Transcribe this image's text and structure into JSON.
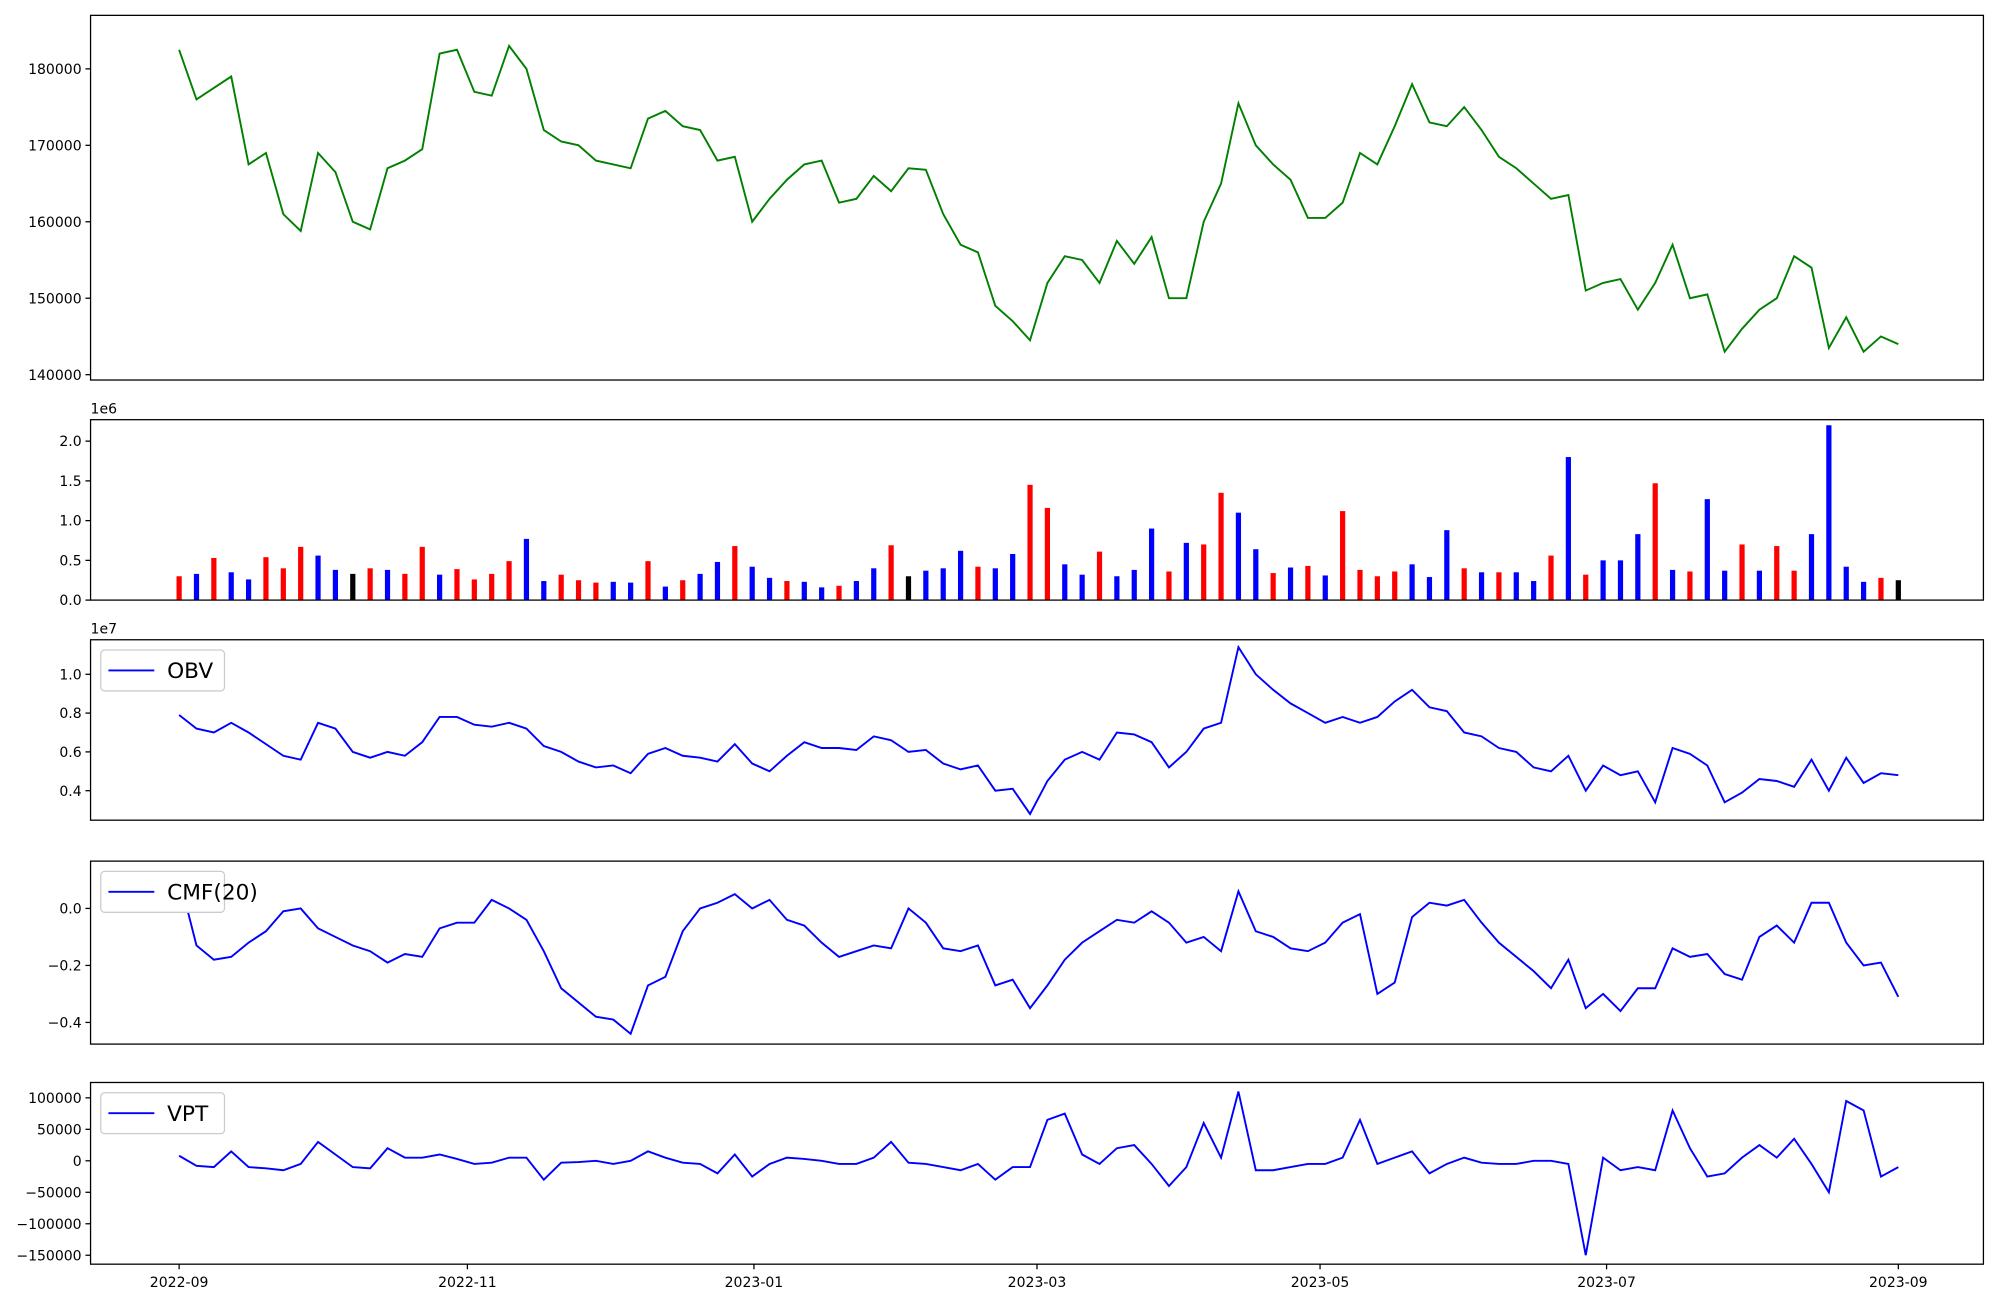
{
  "chart_data": [
    {
      "type": "line",
      "series": [
        {
          "color": "#008000",
          "values": [
            182500,
            176000,
            177500,
            179000,
            167500,
            169000,
            161000,
            158800,
            169000,
            166500,
            160000,
            159000,
            167000,
            168000,
            169500,
            182000,
            182500,
            177000,
            176500,
            183000,
            180000,
            172000,
            170500,
            170000,
            168000,
            167500,
            167000,
            173500,
            174500,
            172500,
            172000,
            168000,
            168500,
            160000,
            163000,
            165500,
            167500,
            168000,
            162500,
            163000,
            166000,
            164000,
            167000,
            166800,
            161000,
            157000,
            156000,
            149000,
            147000,
            144500,
            152000,
            155500,
            155000,
            152000,
            157500,
            154500,
            158000,
            150000,
            150000,
            160000,
            165000,
            175500,
            170000,
            167500,
            165500,
            160500,
            160500,
            162500,
            169000,
            167500,
            172500,
            178000,
            173000,
            172500,
            175000,
            172000,
            168500,
            167000,
            165000,
            163000,
            163500,
            151000,
            152000,
            152500,
            148500,
            152000,
            157000,
            150000,
            150500,
            143000,
            146000,
            148500,
            150000,
            155500,
            154000,
            143500,
            147500,
            143000,
            145000,
            144000
          ]
        }
      ],
      "xlim": [
        -5.1,
        103.9
      ],
      "ylim": [
        139300,
        187000
      ],
      "yticks": [
        140000,
        150000,
        160000,
        170000,
        180000
      ]
    },
    {
      "type": "bar",
      "offset_label": "1e6",
      "values": [
        300000,
        330000,
        530000,
        350000,
        260000,
        540000,
        400000,
        670000,
        560000,
        380000,
        330000,
        400000,
        380000,
        330000,
        670000,
        320000,
        390000,
        260000,
        330000,
        490000,
        770000,
        240000,
        320000,
        250000,
        220000,
        230000,
        220000,
        490000,
        170000,
        250000,
        330000,
        480000,
        680000,
        420000,
        280000,
        240000,
        230000,
        160000,
        180000,
        240000,
        400000,
        690000,
        300000,
        370000,
        400000,
        620000,
        420000,
        400000,
        580000,
        1450000,
        1160000,
        450000,
        320000,
        610000,
        300000,
        380000,
        900000,
        360000,
        720000,
        700000,
        1350000,
        1100000,
        640000,
        340000,
        410000,
        430000,
        310000,
        1120000,
        380000,
        300000,
        360000,
        450000,
        290000,
        880000,
        400000,
        350000,
        350000,
        350000,
        240000,
        560000,
        1800000,
        320000,
        500000,
        500000,
        830000,
        1470000,
        380000,
        360000,
        1270000,
        370000,
        700000,
        370000,
        680000,
        370000,
        830000,
        2200000,
        420000,
        230000,
        280000,
        250000
      ],
      "colors": [
        "red",
        "blue",
        "red",
        "blue",
        "blue",
        "red",
        "red",
        "red",
        "blue",
        "blue",
        "black",
        "red",
        "blue",
        "red",
        "red",
        "blue",
        "red",
        "red",
        "red",
        "red",
        "blue",
        "blue",
        "red",
        "red",
        "red",
        "blue",
        "blue",
        "red",
        "blue",
        "red",
        "blue",
        "blue",
        "red",
        "blue",
        "blue",
        "red",
        "blue",
        "blue",
        "red",
        "blue",
        "blue",
        "red",
        "black",
        "blue",
        "blue",
        "blue",
        "red",
        "blue",
        "blue",
        "red",
        "red",
        "blue",
        "blue",
        "red",
        "blue",
        "blue",
        "blue",
        "red",
        "blue",
        "red",
        "red",
        "blue",
        "blue",
        "red",
        "blue",
        "red",
        "blue",
        "red",
        "red",
        "red",
        "red",
        "blue",
        "blue",
        "blue",
        "red",
        "blue",
        "red",
        "blue",
        "blue",
        "red",
        "blue",
        "red",
        "blue",
        "blue",
        "blue",
        "red",
        "blue",
        "red",
        "blue",
        "blue",
        "red",
        "blue",
        "red",
        "red",
        "blue",
        "blue",
        "blue",
        "blue",
        "red",
        "black"
      ],
      "xlim": [
        -5.1,
        103.9
      ],
      "ylim": [
        0,
        2270000
      ],
      "yticks": [
        {
          "value": 0,
          "label": "0.0"
        },
        {
          "value": 500000,
          "label": "0.5"
        },
        {
          "value": 1000000,
          "label": "1.0"
        },
        {
          "value": 1500000,
          "label": "1.5"
        },
        {
          "value": 2000000,
          "label": "2.0"
        }
      ]
    },
    {
      "type": "line",
      "offset_label": "1e7",
      "series": [
        {
          "name": "OBV",
          "color": "#0000ff",
          "values": [
            7900000,
            7200000,
            7000000,
            7500000,
            7000000,
            6400000,
            5800000,
            5600000,
            7500000,
            7200000,
            6000000,
            5700000,
            6000000,
            5800000,
            6500000,
            7800000,
            7800000,
            7400000,
            7300000,
            7500000,
            7200000,
            6300000,
            6000000,
            5500000,
            5200000,
            5300000,
            4900000,
            5900000,
            6200000,
            5800000,
            5700000,
            5500000,
            6400000,
            5400000,
            5000000,
            5800000,
            6500000,
            6200000,
            6200000,
            6100000,
            6800000,
            6600000,
            6000000,
            6100000,
            5400000,
            5100000,
            5300000,
            4000000,
            4100000,
            2800000,
            4500000,
            5600000,
            6000000,
            5600000,
            7000000,
            6900000,
            6500000,
            5200000,
            6000000,
            7200000,
            7500000,
            11400000,
            10000000,
            9200000,
            8500000,
            8000000,
            7500000,
            7800000,
            7500000,
            7800000,
            8600000,
            9200000,
            8300000,
            8100000,
            7000000,
            6800000,
            6200000,
            6000000,
            5200000,
            5000000,
            5800000,
            4000000,
            5300000,
            4800000,
            5000000,
            3400000,
            6200000,
            5900000,
            5300000,
            3400000,
            3900000,
            4600000,
            4500000,
            4200000,
            5600000,
            4000000,
            5700000,
            4400000,
            4900000,
            4800000
          ]
        }
      ],
      "xlim": [
        -5.1,
        103.9
      ],
      "ylim": [
        2480000,
        11780000
      ],
      "yticks": [
        {
          "value": 4000000,
          "label": "0.4"
        },
        {
          "value": 6000000,
          "label": "0.6"
        },
        {
          "value": 8000000,
          "label": "0.8"
        },
        {
          "value": 10000000,
          "label": "1.0"
        }
      ]
    },
    {
      "type": "line",
      "series": [
        {
          "name": "CMF(20)",
          "color": "#0000ff",
          "values": [
            0.11,
            -0.13,
            -0.18,
            -0.17,
            -0.12,
            -0.08,
            -0.01,
            0.0,
            -0.07,
            -0.1,
            -0.13,
            -0.15,
            -0.19,
            -0.16,
            -0.17,
            -0.07,
            -0.05,
            -0.05,
            0.03,
            0.0,
            -0.04,
            -0.15,
            -0.28,
            -0.33,
            -0.38,
            -0.39,
            -0.44,
            -0.27,
            -0.24,
            -0.08,
            0.0,
            0.02,
            0.05,
            0.0,
            0.03,
            -0.04,
            -0.06,
            -0.12,
            -0.17,
            -0.15,
            -0.13,
            -0.14,
            0.0,
            -0.05,
            -0.14,
            -0.15,
            -0.13,
            -0.27,
            -0.25,
            -0.35,
            -0.27,
            -0.18,
            -0.12,
            -0.08,
            -0.04,
            -0.05,
            -0.01,
            -0.05,
            -0.12,
            -0.1,
            -0.15,
            0.06,
            -0.08,
            -0.1,
            -0.14,
            -0.15,
            -0.12,
            -0.05,
            -0.02,
            -0.3,
            -0.26,
            -0.03,
            0.02,
            0.01,
            0.03,
            -0.05,
            -0.12,
            -0.17,
            -0.22,
            -0.28,
            -0.18,
            -0.35,
            -0.3,
            -0.36,
            -0.28,
            -0.28,
            -0.14,
            -0.17,
            -0.16,
            -0.23,
            -0.25,
            -0.1,
            -0.06,
            -0.12,
            0.02,
            0.02,
            -0.12,
            -0.2,
            -0.19,
            -0.31
          ]
        }
      ],
      "xlim": [
        -5.1,
        103.9
      ],
      "ylim": [
        -0.476,
        0.166
      ],
      "yticks": [
        {
          "value": -0.4,
          "label": "−0.4"
        },
        {
          "value": -0.2,
          "label": "−0.2"
        },
        {
          "value": 0,
          "label": "0.0"
        }
      ]
    },
    {
      "type": "line",
      "series": [
        {
          "name": "VPT",
          "color": "#0000ff",
          "values": [
            8000,
            -8000,
            -10000,
            15000,
            -10000,
            -12000,
            -15000,
            -5000,
            30000,
            10000,
            -10000,
            -12000,
            20000,
            5000,
            5000,
            10000,
            3000,
            -5000,
            -3000,
            5000,
            5000,
            -30000,
            -3000,
            -2000,
            0,
            -5000,
            0,
            15000,
            5000,
            -3000,
            -5000,
            -20000,
            10000,
            -25000,
            -5000,
            5000,
            3000,
            0,
            -5000,
            -5000,
            5000,
            30000,
            -3000,
            -5000,
            -10000,
            -15000,
            -5000,
            -30000,
            -10000,
            -10000,
            65000,
            75000,
            10000,
            -5000,
            20000,
            25000,
            -5000,
            -40000,
            -10000,
            60000,
            5000,
            110000,
            -15000,
            -15000,
            -10000,
            -5000,
            -5000,
            5000,
            65000,
            -5000,
            5000,
            15000,
            -20000,
            -5000,
            5000,
            -3000,
            -5000,
            -5000,
            0,
            0,
            -5000,
            -150000,
            5000,
            -15000,
            -10000,
            -15000,
            80000,
            20000,
            -25000,
            -20000,
            5000,
            25000,
            5000,
            35000,
            -5000,
            -50000,
            95000,
            80000,
            -25000,
            -10000
          ]
        }
      ],
      "xlim": [
        -5.1,
        103.9
      ],
      "ylim": [
        -164200,
        124400
      ],
      "yticks": [
        {
          "value": -150000,
          "label": "−150000"
        },
        {
          "value": -100000,
          "label": "−100000"
        },
        {
          "value": -50000,
          "label": "−50000"
        },
        0,
        50000,
        100000
      ],
      "xticks": [
        {
          "value": 0,
          "label": "2022-09"
        },
        {
          "value": 16.6,
          "label": "2022-11"
        },
        {
          "value": 33.1,
          "label": "2023-01"
        },
        {
          "value": 49.4,
          "label": "2023-03"
        },
        {
          "value": 65.7,
          "label": "2023-05"
        },
        {
          "value": 82.2,
          "label": "2023-07"
        },
        {
          "value": 99,
          "label": "2023-09"
        }
      ]
    }
  ]
}
